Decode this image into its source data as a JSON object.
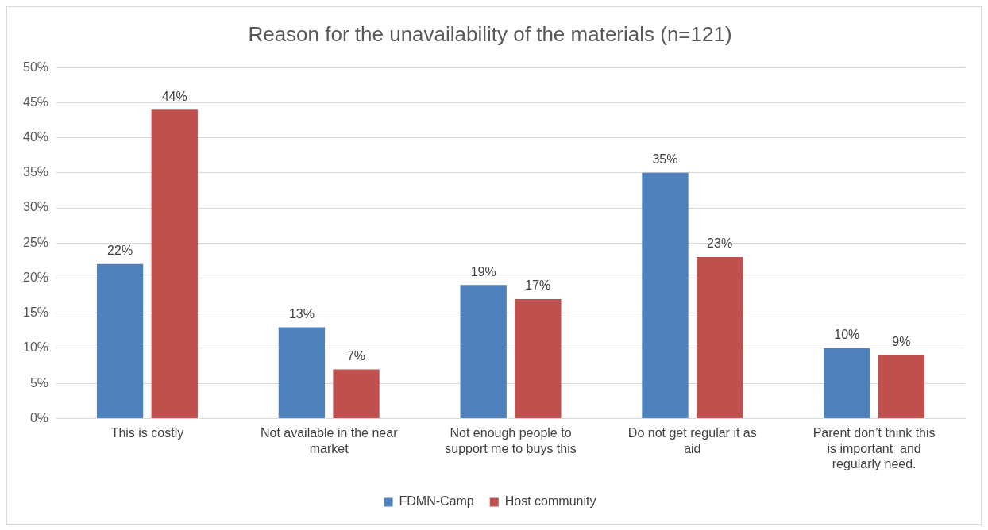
{
  "chart_data": {
    "type": "bar",
    "title": "Reason for the unavailability of the materials (n=121)",
    "categories": [
      "This is costly",
      "Not available in the near market",
      "Not enough people to support me to buys this",
      "Do not get regular it as aid",
      "Parent don’t think this is important  and regularly need."
    ],
    "series": [
      {
        "name": "FDMN-Camp",
        "color": "#4f81bd",
        "values": [
          22,
          13,
          19,
          35,
          10
        ],
        "value_labels": [
          "22%",
          "13%",
          "19%",
          "35%",
          "10%"
        ]
      },
      {
        "name": "Host community",
        "color": "#c0504d",
        "values": [
          44,
          7,
          17,
          23,
          9
        ],
        "value_labels": [
          "44%",
          "7%",
          "17%",
          "23%",
          "9%"
        ]
      }
    ],
    "ylim": [
      0,
      50
    ],
    "yticks": [
      {
        "value": 0,
        "label": "0%"
      },
      {
        "value": 5,
        "label": "5%"
      },
      {
        "value": 10,
        "label": "10%"
      },
      {
        "value": 15,
        "label": "15%"
      },
      {
        "value": 20,
        "label": "20%"
      },
      {
        "value": 25,
        "label": "25%"
      },
      {
        "value": 30,
        "label": "30%"
      },
      {
        "value": 35,
        "label": "35%"
      },
      {
        "value": 40,
        "label": "40%"
      },
      {
        "value": 45,
        "label": "45%"
      },
      {
        "value": 50,
        "label": "50%"
      }
    ],
    "grid": "y",
    "legend": "bottom"
  }
}
